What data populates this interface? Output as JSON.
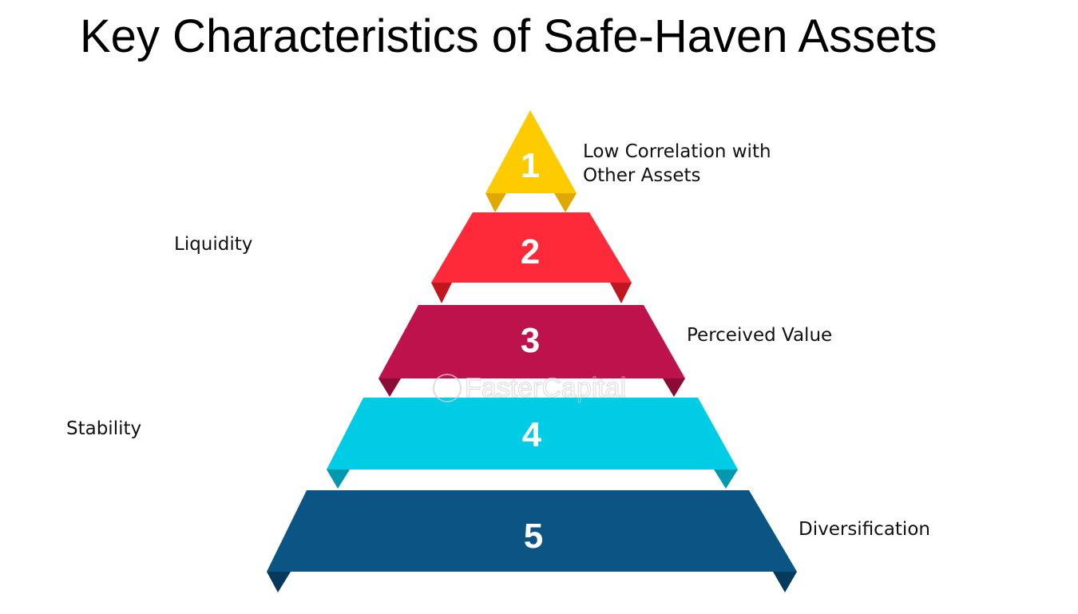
{
  "title": "Key Characteristics of Safe-Haven Assets",
  "tiers": [
    {
      "number": "1",
      "label_line1": "Low Correlation with",
      "label_line2": "Other Assets",
      "color": "#FECB00",
      "fold_color": "#E0A800"
    },
    {
      "number": "2",
      "label": "Liquidity",
      "color": "#FF2A39",
      "fold_color": "#C01620"
    },
    {
      "number": "3",
      "label": "Perceived Value",
      "color": "#BE124C",
      "fold_color": "#8A0B35"
    },
    {
      "number": "4",
      "label": "Stability",
      "color": "#00CCE6",
      "fold_color": "#0099B0"
    },
    {
      "number": "5",
      "label": "Diversification",
      "color": "#0A5583",
      "fold_color": "#063A5C"
    }
  ],
  "watermark": "FasterCapital"
}
